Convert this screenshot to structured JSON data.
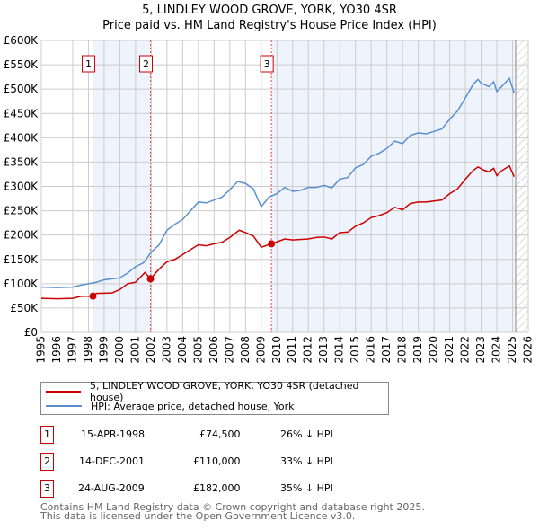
{
  "title": "5, LINDLEY WOOD GROVE, YORK, YO30 4SR",
  "subtitle": "Price paid vs. HM Land Registry's House Price Index (HPI)",
  "legend": [
    {
      "label": "5, LINDLEY WOOD GROVE, YORK, YO30 4SR (detached house)",
      "color": "#cc0000"
    },
    {
      "label": "HPI: Average price, detached house, York",
      "color": "#5b8fd0"
    }
  ],
  "sales": [
    {
      "num": "1",
      "date": "15-APR-1998",
      "price": "£74,500",
      "diff": "26% ↓ HPI",
      "x": 1998.29,
      "y": 74.5
    },
    {
      "num": "2",
      "date": "14-DEC-2001",
      "price": "£110,000",
      "diff": "33% ↓ HPI",
      "x": 2001.95,
      "y": 110
    },
    {
      "num": "3",
      "date": "24-AUG-2009",
      "price": "£182,000",
      "diff": "35% ↓ HPI",
      "x": 2009.65,
      "y": 182
    }
  ],
  "footer": [
    "Contains HM Land Registry data © Crown copyright and database right 2025.",
    "This data is licensed under the Open Government Licence v3.0."
  ],
  "chart_data": {
    "type": "line",
    "title": "5, LINDLEY WOOD GROVE, YORK, YO30 4SR",
    "subtitle": "Price paid vs. HM Land Registry's House Price Index (HPI)",
    "xlim": [
      1995,
      2026
    ],
    "ylim": [
      0,
      600
    ],
    "xticks": [
      "1995",
      "1996",
      "1997",
      "1998",
      "1999",
      "2000",
      "2001",
      "2002",
      "2003",
      "2004",
      "2005",
      "2006",
      "2007",
      "2008",
      "2009",
      "2010",
      "2011",
      "2012",
      "2013",
      "2014",
      "2015",
      "2016",
      "2017",
      "2018",
      "2019",
      "2020",
      "2021",
      "2022",
      "2023",
      "2024",
      "2025",
      "2026"
    ],
    "yticks": [
      "£0",
      "£50K",
      "£100K",
      "£150K",
      "£200K",
      "£250K",
      "£300K",
      "£350K",
      "£400K",
      "£450K",
      "£500K",
      "£550K",
      "£600K"
    ],
    "data_end": 2025.2,
    "series": [
      {
        "name": "5, LINDLEY WOOD GROVE, YORK, YO30 4SR (detached house)",
        "color": "#cc0000",
        "x": [
          1995,
          1996,
          1997,
          1997.5,
          1998.29,
          1998.5,
          1999.5,
          2000,
          2000.5,
          2001,
          2001.6,
          2001.95,
          2002.5,
          2003,
          2003.5,
          2004,
          2004.5,
          2005,
          2005.5,
          2006,
          2006.5,
          2007,
          2007.6,
          2008,
          2008.5,
          2009,
          2009.65,
          2010,
          2010.5,
          2011,
          2012,
          2012.5,
          2013,
          2013.5,
          2014,
          2014.5,
          2015,
          2015.5,
          2016,
          2016.5,
          2017,
          2017.5,
          2018,
          2018.5,
          2019,
          2019.5,
          2020,
          2020.5,
          2021,
          2021.5,
          2022,
          2022.5,
          2022.8,
          2023.2,
          2023.5,
          2023.8,
          2024,
          2024.3,
          2024.8,
          2025.1
        ],
        "y": [
          70,
          69,
          70,
          74,
          74.5,
          80,
          81,
          88,
          100,
          103,
          123,
          110,
          130,
          145,
          150,
          160,
          170,
          180,
          178,
          182,
          185,
          195,
          210,
          205,
          198,
          175,
          182,
          186,
          192,
          190,
          192,
          195,
          196,
          192,
          205,
          206,
          218,
          225,
          236,
          240,
          246,
          257,
          252,
          265,
          268,
          268,
          270,
          272,
          285,
          295,
          315,
          333,
          340,
          333,
          330,
          337,
          322,
          332,
          342,
          320
        ]
      },
      {
        "name": "HPI: Average price, detached house, York",
        "color": "#5b8fd0",
        "x": [
          1995,
          1996,
          1997,
          1997.5,
          1998,
          1998.5,
          1999,
          2000,
          2000.5,
          2001,
          2001.5,
          2002,
          2002.5,
          2003,
          2003.5,
          2004,
          2004.5,
          2005,
          2005.5,
          2006,
          2006.5,
          2007,
          2007.5,
          2008,
          2008.5,
          2009,
          2009.5,
          2010,
          2010.5,
          2011,
          2011.5,
          2012,
          2012.5,
          2013,
          2013.5,
          2014,
          2014.5,
          2015,
          2015.5,
          2016,
          2016.5,
          2017,
          2017.5,
          2018,
          2018.5,
          2019,
          2019.5,
          2020,
          2020.5,
          2021,
          2021.5,
          2022,
          2022.5,
          2022.8,
          2023,
          2023.5,
          2023.8,
          2024,
          2024.3,
          2024.8,
          2025.1
        ],
        "y": [
          93,
          92,
          93,
          97,
          100,
          103,
          108,
          112,
          122,
          135,
          143,
          165,
          180,
          210,
          222,
          232,
          250,
          268,
          266,
          272,
          278,
          293,
          310,
          306,
          295,
          258,
          278,
          285,
          298,
          290,
          292,
          298,
          298,
          302,
          297,
          315,
          318,
          338,
          345,
          362,
          368,
          378,
          393,
          388,
          405,
          410,
          408,
          413,
          418,
          438,
          455,
          482,
          510,
          520,
          512,
          505,
          515,
          495,
          505,
          522,
          492
        ]
      }
    ]
  }
}
